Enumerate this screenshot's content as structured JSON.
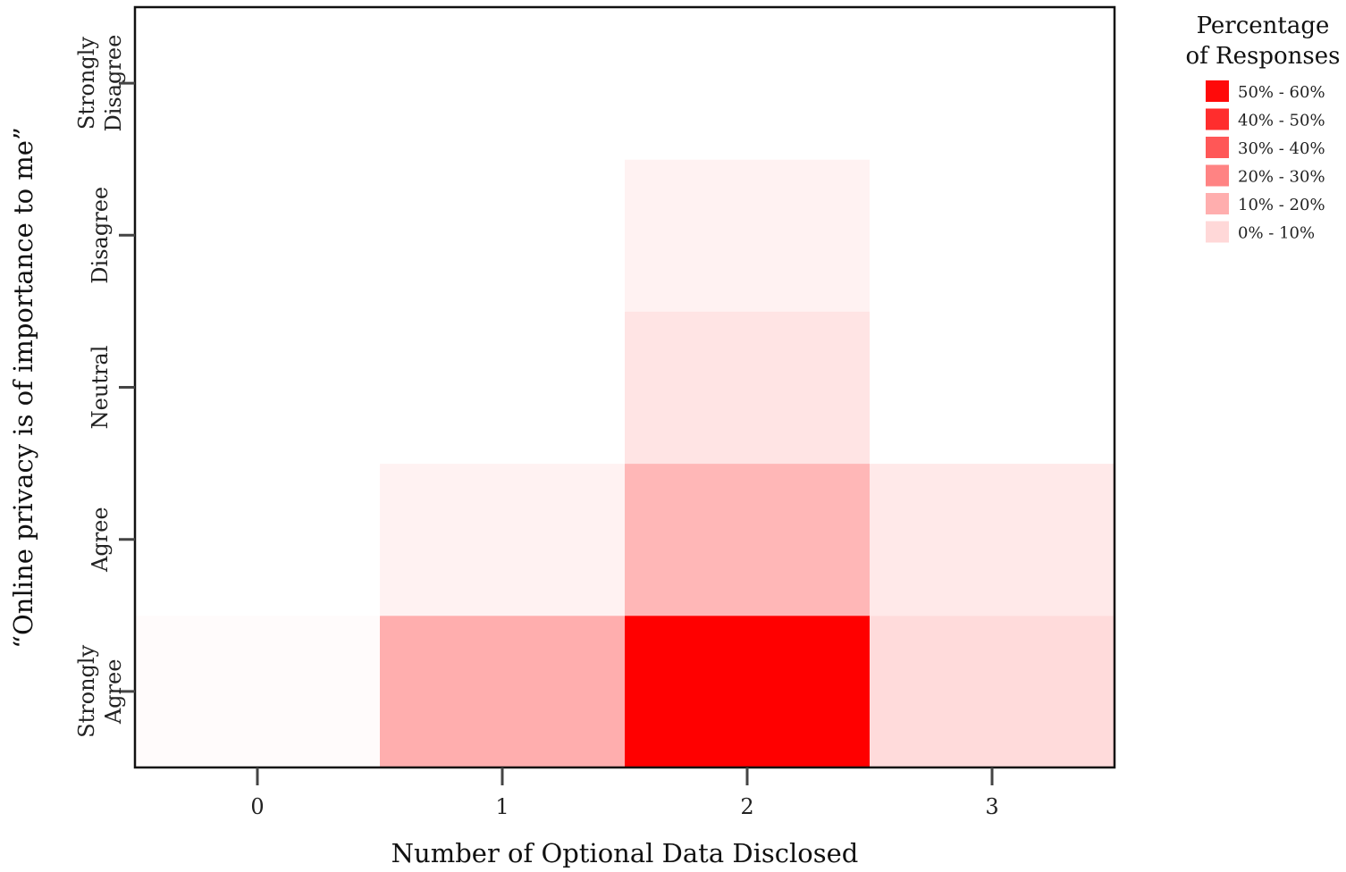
{
  "chart_data": {
    "type": "heatmap",
    "title": "",
    "xlabel": "Number of Optional Data Disclosed",
    "ylabel": "“Online privacy is of importance to me”",
    "x": [
      "0",
      "1",
      "2",
      "3"
    ],
    "y": [
      {
        "lines": [
          "Strongly",
          "Agree"
        ]
      },
      {
        "lines": [
          "Agree"
        ]
      },
      {
        "lines": [
          "Neutral"
        ]
      },
      {
        "lines": [
          "Disagree"
        ]
      },
      {
        "lines": [
          "Strongly",
          "Disagree"
        ]
      }
    ],
    "values": [
      [
        1,
        18,
        57,
        8
      ],
      [
        0,
        3,
        16,
        5
      ],
      [
        0,
        0,
        6,
        0
      ],
      [
        0,
        0,
        3,
        0
      ],
      [
        0,
        0,
        0,
        0
      ]
    ],
    "value_unit": "%",
    "color_max": 57,
    "color_scale": [
      "#ffffff",
      "#ff0000"
    ],
    "legend": {
      "title": [
        "Percentage",
        "of Responses"
      ],
      "placement": "right",
      "entries": [
        {
          "label": "50% - 60%",
          "color": "#ff0a0a"
        },
        {
          "label": "40% - 50%",
          "color": "#ff2d2d"
        },
        {
          "label": "30% - 40%",
          "color": "#ff5757"
        },
        {
          "label": "20% - 30%",
          "color": "#ff8383"
        },
        {
          "label": "10% - 20%",
          "color": "#ffaeae"
        },
        {
          "label": "0% - 10%",
          "color": "#ffd8d8"
        }
      ]
    },
    "grid": false
  }
}
